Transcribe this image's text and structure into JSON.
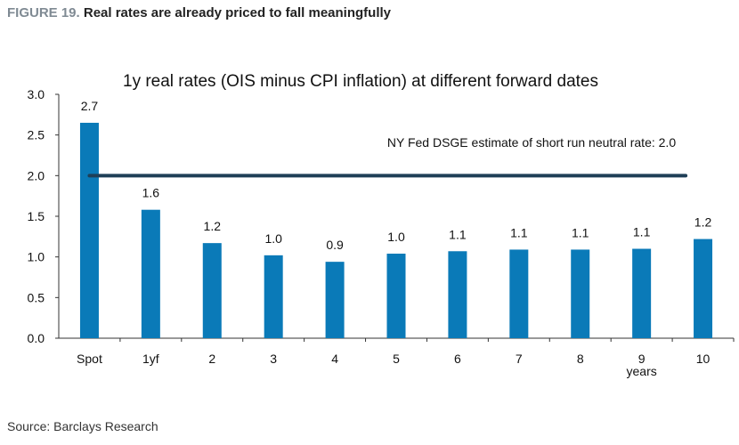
{
  "figure": {
    "label": "FIGURE 19.",
    "title": "Real rates are already priced to fall meaningfully"
  },
  "source": "Source: Barclays Research",
  "chart_data": {
    "type": "bar",
    "title": "1y real rates (OIS minus CPI inflation) at different forward dates",
    "categories": [
      "Spot",
      "1yf",
      "2",
      "3",
      "4",
      "5",
      "6",
      "7",
      "8",
      "9",
      "10"
    ],
    "x_unit_label": "years",
    "values": [
      2.65,
      1.58,
      1.17,
      1.02,
      0.94,
      1.04,
      1.07,
      1.09,
      1.09,
      1.1,
      1.22
    ],
    "data_labels": [
      "2.7",
      "1.6",
      "1.2",
      "1.0",
      "0.9",
      "1.0",
      "1.1",
      "1.1",
      "1.1",
      "1.1",
      "1.2"
    ],
    "ylim": [
      0,
      3.0
    ],
    "yticks": [
      "0.0",
      "0.5",
      "1.0",
      "1.5",
      "2.0",
      "2.5",
      "3.0"
    ],
    "xlabel": "",
    "ylabel": "",
    "grid": false,
    "reference_line": {
      "value": 2.0,
      "label": "NY Fed DSGE estimate of short run neutral rate: 2.0",
      "color": "#1f3f57"
    },
    "bar_color": "#0a7ab8"
  }
}
